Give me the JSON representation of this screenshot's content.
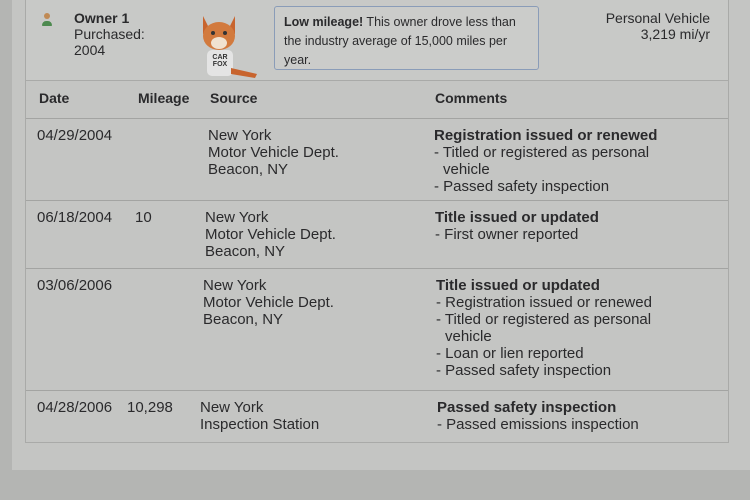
{
  "owner": {
    "name": "Owner 1",
    "purchased_label": "Purchased:",
    "purchased_year": "2004",
    "vehicle_type": "Personal Vehicle",
    "miles_per_year": "3,219 mi/yr",
    "mascot_text": "CAR FOX",
    "callout": {
      "bold": "Low mileage!",
      "text": " This owner drove less than the industry average of 15,000 miles per year."
    },
    "icon": "person-icon",
    "accent_color": "#4d8a4f"
  },
  "table": {
    "headers": {
      "date": "Date",
      "mileage": "Mileage",
      "source": "Source",
      "comments": "Comments"
    },
    "rows": [
      {
        "date": "04/29/2004",
        "mileage": "",
        "source": [
          "New York",
          "Motor Vehicle Dept.",
          "Beacon, NY"
        ],
        "title": "Registration issued or renewed",
        "items": [
          "- Titled or registered as personal vehicle",
          "- Passed safety inspection"
        ]
      },
      {
        "date": "06/18/2004",
        "mileage": "10",
        "source": [
          "New York",
          "Motor Vehicle Dept.",
          "Beacon, NY"
        ],
        "title": "Title issued or updated",
        "items": [
          "- First owner reported"
        ]
      },
      {
        "date": "03/06/2006",
        "mileage": "",
        "source": [
          "New York",
          "Motor Vehicle Dept.",
          "Beacon, NY"
        ],
        "title": "Title issued or updated",
        "items": [
          "- Registration issued or renewed",
          "- Titled or registered as personal vehicle",
          "- Loan or lien reported",
          "- Passed safety inspection"
        ]
      },
      {
        "date": "04/28/2006",
        "mileage": "10,298",
        "source": [
          "New York",
          "Inspection Station"
        ],
        "title": "Passed safety inspection",
        "items": [
          "- Passed emissions inspection"
        ]
      }
    ]
  }
}
